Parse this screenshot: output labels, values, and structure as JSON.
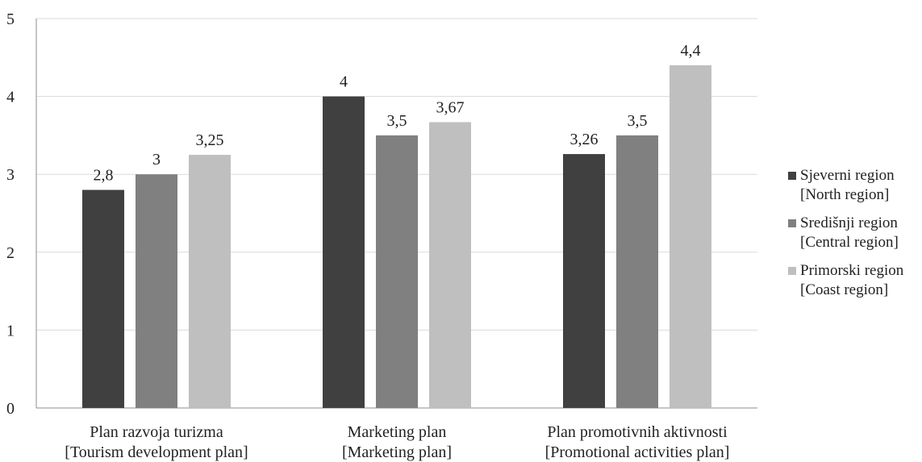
{
  "chart_data": {
    "type": "bar",
    "categories": [
      [
        "Plan razvoja turizma",
        "[Tourism development plan]"
      ],
      [
        "Marketing plan",
        "[Marketing plan]"
      ],
      [
        "Plan promotivnih aktivnosti",
        "[Promotional activities plan]"
      ]
    ],
    "series": [
      {
        "name": [
          "Sjeverni region",
          "[North region]"
        ],
        "color": "#404040",
        "values": [
          2.8,
          4,
          3.26
        ],
        "labels": [
          "2,8",
          "4",
          "3,26"
        ]
      },
      {
        "name": [
          "Središnji region",
          "[Central region]"
        ],
        "color": "#808080",
        "values": [
          3,
          3.5,
          3.5
        ],
        "labels": [
          "3",
          "3,5",
          "3,5"
        ]
      },
      {
        "name": [
          "Primorski region",
          "[Coast region]"
        ],
        "color": "#bfbfbf",
        "values": [
          3.25,
          3.67,
          4.4
        ],
        "labels": [
          "3,25",
          "3,67",
          "4,4"
        ]
      }
    ],
    "ylim": [
      0,
      5
    ],
    "yticks": [
      "0",
      "1",
      "2",
      "3",
      "4",
      "5"
    ],
    "grid": true,
    "legend_position": "right",
    "title": "",
    "xlabel": "",
    "ylabel": ""
  }
}
